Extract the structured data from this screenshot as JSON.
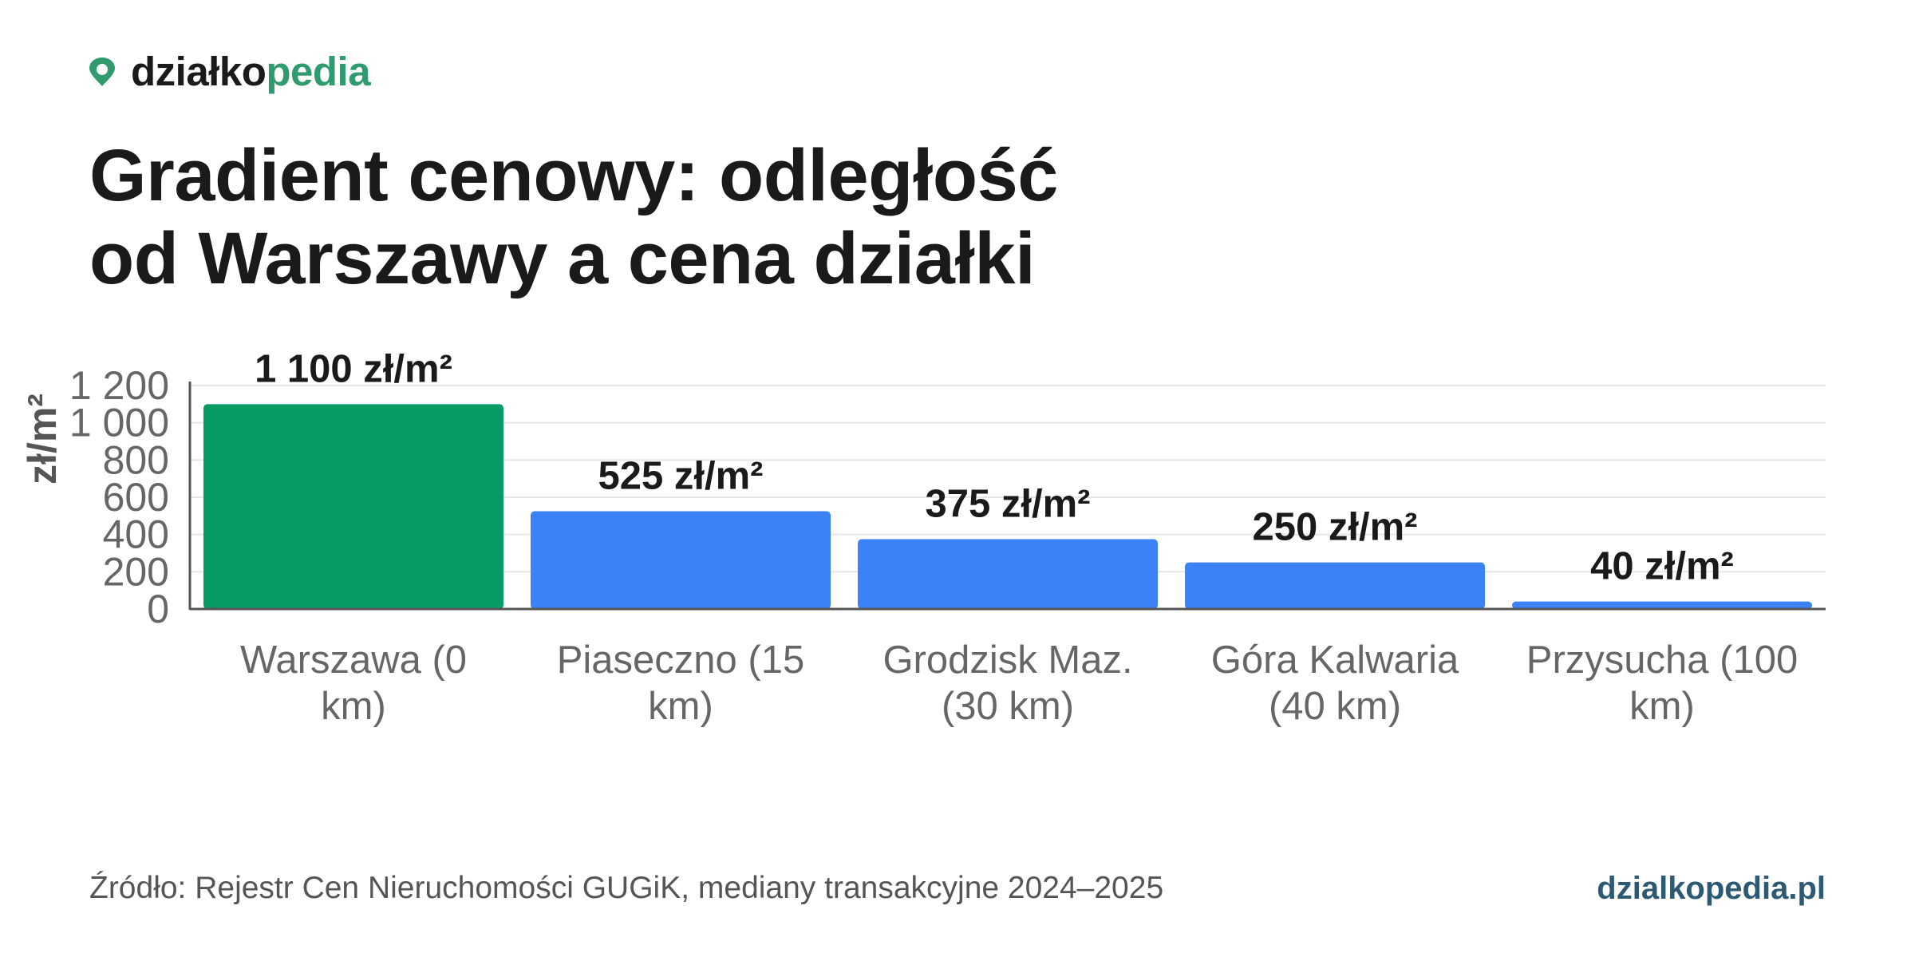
{
  "brand": {
    "name_part1": "działko",
    "name_part2": "pedia",
    "icon": "map-pin-icon",
    "color_accent": "#2f9b6e"
  },
  "title": {
    "line1": "Gradient cenowy: odległość",
    "line2": "od Warszawy a cena działki"
  },
  "chart_data": {
    "type": "bar",
    "ylabel": "zł/m²",
    "ylim": [
      0,
      1200
    ],
    "yticks": [
      0,
      200,
      400,
      600,
      800,
      1000,
      1200
    ],
    "ytick_labels": [
      "0",
      "200",
      "400",
      "600",
      "800",
      "1 000",
      "1 200"
    ],
    "grid": true,
    "categories": [
      [
        "Warszawa (0",
        "km)"
      ],
      [
        "Piaseczno (15",
        "km)"
      ],
      [
        "Grodzisk Maz.",
        "(30 km)"
      ],
      [
        "Góra Kalwaria",
        "(40 km)"
      ],
      [
        "Przysucha (100",
        "km)"
      ]
    ],
    "values": [
      1100,
      525,
      375,
      250,
      40
    ],
    "data_labels": [
      "1 100 zł/m²",
      "525 zł/m²",
      "375 zł/m²",
      "250 zł/m²",
      "40 zł/m²"
    ],
    "colors": [
      "#079c66",
      "#3b82f6",
      "#3b82f6",
      "#3b82f6",
      "#3b82f6"
    ]
  },
  "footer": {
    "source": "Źródło: Rejestr Cen Nieruchomości GUGiK, mediany transakcyjne 2024–2025",
    "site": "dzialkopedia.pl"
  }
}
